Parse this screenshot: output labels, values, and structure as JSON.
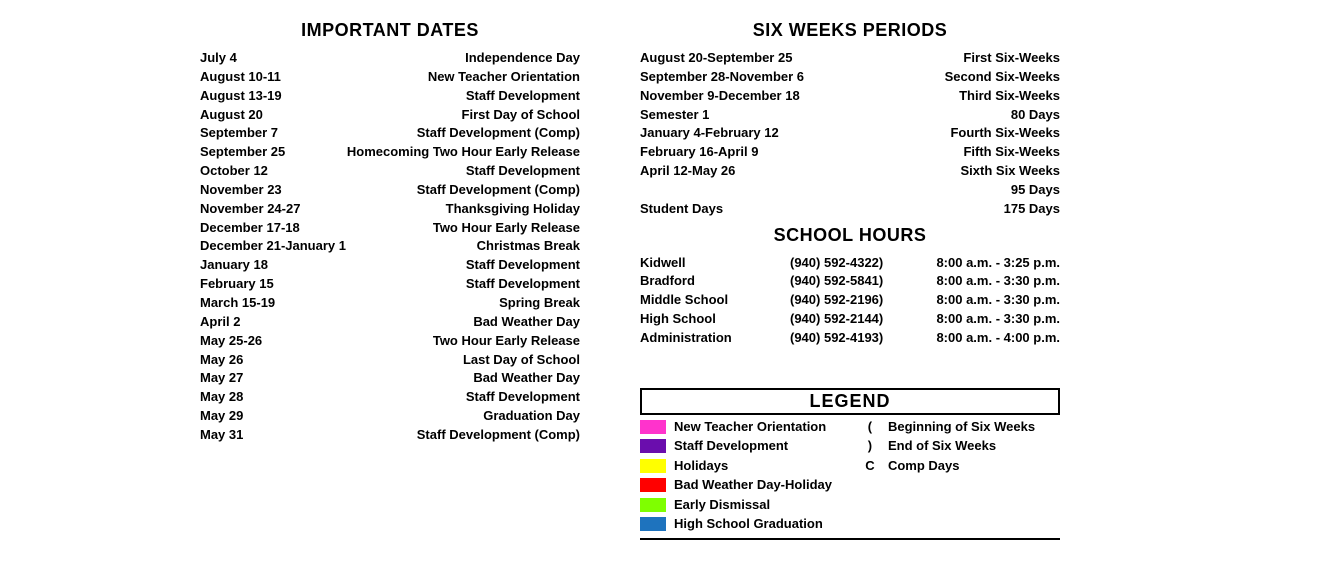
{
  "important_dates": {
    "title": "IMPORTANT DATES",
    "rows": [
      {
        "date": "July 4",
        "desc": "Independence Day"
      },
      {
        "date": "August 10-11",
        "desc": "New Teacher Orientation"
      },
      {
        "date": "August 13-19",
        "desc": "Staff Development"
      },
      {
        "date": "August 20",
        "desc": "First Day of School"
      },
      {
        "date": "September 7",
        "desc": "Staff Development (Comp)"
      },
      {
        "date": "September 25",
        "desc": "Homecoming Two Hour Early Release"
      },
      {
        "date": "October 12",
        "desc": "Staff Development"
      },
      {
        "date": "November 23",
        "desc": "Staff Development (Comp)"
      },
      {
        "date": "November 24-27",
        "desc": "Thanksgiving Holiday"
      },
      {
        "date": "December 17-18",
        "desc": "Two Hour Early Release"
      },
      {
        "date": "December 21-January 1",
        "desc": "Christmas Break"
      },
      {
        "date": "January 18",
        "desc": "Staff Development"
      },
      {
        "date": "February 15",
        "desc": "Staff Development"
      },
      {
        "date": "March 15-19",
        "desc": "Spring Break"
      },
      {
        "date": "April 2",
        "desc": "Bad Weather Day"
      },
      {
        "date": "May 25-26",
        "desc": "Two Hour Early Release"
      },
      {
        "date": "May 26",
        "desc": "Last Day of School"
      },
      {
        "date": "May 27",
        "desc": "Bad Weather Day"
      },
      {
        "date": "May 28",
        "desc": "Staff Development"
      },
      {
        "date": "May 29",
        "desc": "Graduation Day"
      },
      {
        "date": "May 31",
        "desc": "Staff Development (Comp)"
      }
    ]
  },
  "six_weeks": {
    "title": "SIX WEEKS PERIODS",
    "rows": [
      {
        "left": "August 20-September 25",
        "right": "First Six-Weeks"
      },
      {
        "left": "September 28-November 6",
        "right": "Second Six-Weeks"
      },
      {
        "left": "November 9-December 18",
        "right": "Third Six-Weeks"
      },
      {
        "left": "Semester 1",
        "right": "80 Days"
      },
      {
        "left": "January 4-February 12",
        "right": "Fourth Six-Weeks"
      },
      {
        "left": "February 16-April 9",
        "right": "Fifth Six-Weeks"
      },
      {
        "left": "April 12-May 26",
        "right": "Sixth Six Weeks"
      },
      {
        "left": "",
        "right": "95 Days"
      },
      {
        "left": "Student Days",
        "right": "175 Days"
      }
    ]
  },
  "school_hours": {
    "title": "SCHOOL HOURS",
    "rows": [
      {
        "name": "Kidwell",
        "phone": "(940) 592-4322)",
        "hours": "8:00 a.m. - 3:25 p.m."
      },
      {
        "name": "Bradford",
        "phone": "(940) 592-5841)",
        "hours": "8:00 a.m. - 3:30 p.m."
      },
      {
        "name": "Middle School",
        "phone": "(940) 592-2196)",
        "hours": "8:00 a.m. - 3:30 p.m."
      },
      {
        "name": "High School",
        "phone": "(940) 592-2144)",
        "hours": "8:00 a.m. - 3:30 p.m."
      },
      {
        "name": "Administration",
        "phone": "(940) 592-4193)",
        "hours": "8:00 a.m. - 4:00 p.m."
      }
    ]
  },
  "legend": {
    "title": "LEGEND",
    "colors": [
      {
        "color": "#ff33cc",
        "label": "New Teacher Orientation"
      },
      {
        "color": "#6a0dad",
        "label": "Staff Development"
      },
      {
        "color": "#ffff00",
        "label": "Holidays"
      },
      {
        "color": "#ff0000",
        "label": "Bad Weather Day-Holiday"
      },
      {
        "color": "#7fff00",
        "label": "Early Dismissal"
      },
      {
        "color": "#1e73be",
        "label": "High School Graduation"
      }
    ],
    "symbols": [
      {
        "sym": "(",
        "label": "Beginning of Six Weeks"
      },
      {
        "sym": ")",
        "label": "End of Six Weeks"
      },
      {
        "sym": "C",
        "label": "Comp Days"
      }
    ]
  }
}
